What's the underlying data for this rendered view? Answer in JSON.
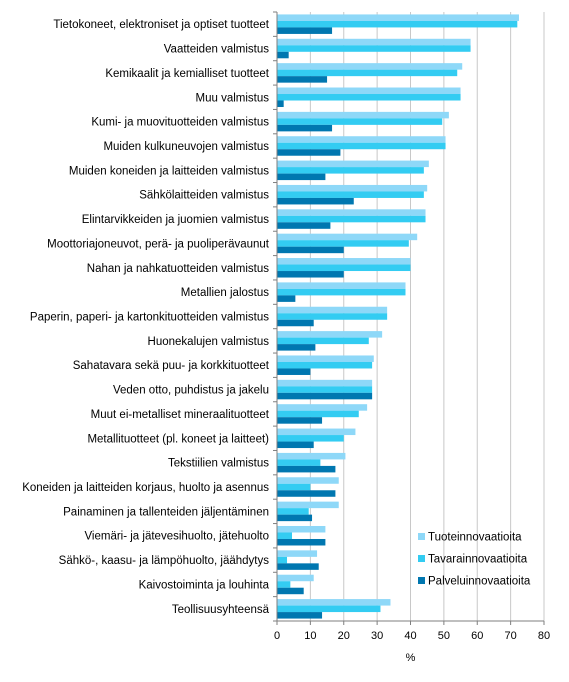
{
  "chart_data": {
    "type": "bar",
    "orientation": "horizontal",
    "categories": [
      "Tietokoneet, elektroniset ja optiset tuotteet",
      "Vaatteiden valmistus",
      "Kemikaalit ja kemialliset tuotteet",
      "Muu valmistus",
      "Kumi- ja muovituotteiden valmistus",
      "Muiden kulkuneuvojen valmistus",
      "Muiden koneiden ja laitteiden valmistus",
      "Sähkölaitteiden valmistus",
      "Elintarvikkeiden ja juomien valmistus",
      "Moottoriajoneuvot, perä- ja puoliperävaunut",
      "Nahan ja nahkatuotteiden valmistus",
      "Metallien jalostus",
      "Paperin, paperi- ja kartonkituotteiden valmistus",
      "Huonekalujen valmistus",
      "Sahatavara sekä puu- ja korkkituotteet",
      "Veden otto, puhdistus ja jakelu",
      "Muut ei-metalliset mineraalituotteet",
      "Metallituotteet (pl. koneet ja laitteet)",
      "Tekstiilien valmistus",
      "Koneiden ja laitteiden korjaus, huolto ja asennus",
      "Painaminen ja tallenteiden jäljentäminen",
      "Viemäri- ja jätevesihuolto, jätehuolto",
      "Sähkö-, kaasu- ja lämpöhuolto, jäähdytys",
      "Kaivostoiminta ja louhinta",
      "Teollisuusyhteensä"
    ],
    "series": [
      {
        "name": "Tuoteinnovaatioita",
        "color": "#8ed8f8",
        "values": [
          72.5,
          58,
          55.5,
          55,
          51.5,
          50.5,
          45.5,
          45,
          44.5,
          42,
          40,
          38.5,
          33,
          31.5,
          29,
          28.5,
          27,
          23.5,
          20.5,
          18.5,
          18.5,
          14.5,
          12,
          11,
          34
        ]
      },
      {
        "name": "Tavarainnovaatioita",
        "color": "#33ccf2",
        "values": [
          72,
          58,
          54,
          55,
          49.5,
          50.5,
          44,
          44,
          44.5,
          39.5,
          40,
          38.5,
          33,
          27.5,
          28.5,
          28.5,
          24.5,
          20,
          13,
          10,
          9.5,
          4.5,
          3,
          4,
          31
        ]
      },
      {
        "name": "Palveluinnovaatioita",
        "color": "#0077b0",
        "values": [
          16.5,
          3.5,
          15,
          2,
          16.5,
          19,
          14.5,
          23,
          16,
          20,
          20,
          5.5,
          11,
          11.5,
          10,
          28.5,
          13.5,
          11,
          17.5,
          17.5,
          10.5,
          14.5,
          12.5,
          8,
          13.5
        ]
      }
    ],
    "xlabel": "%",
    "xlim": [
      0,
      80
    ],
    "xticks": [
      0,
      10,
      20,
      30,
      40,
      50,
      60,
      70,
      80
    ],
    "grid": true,
    "legend_position": "bottom-right"
  }
}
